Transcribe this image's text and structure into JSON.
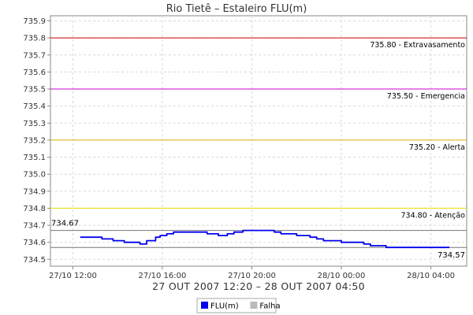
{
  "chart_data": {
    "type": "line",
    "title": "Rio Tietê – Estaleiro FLU(m)",
    "subtitle": "27 OUT 2007 12:20 – 28 OUT 2007 04:50",
    "ylim": [
      734.46,
      735.93
    ],
    "yticks": [
      734.5,
      734.6,
      734.7,
      734.8,
      734.9,
      735.0,
      735.1,
      735.2,
      735.3,
      735.4,
      735.5,
      735.6,
      735.7,
      735.8,
      735.9
    ],
    "ytick_labels": [
      "734.5",
      "734.6",
      "734.7",
      "734.8",
      "734.9",
      "735.0",
      "735.1",
      "735.2",
      "735.3",
      "735.4",
      "735.5",
      "735.6",
      "735.7",
      "735.8",
      "735.9"
    ],
    "xlim_hours": [
      11.0,
      29.6
    ],
    "xticks": [
      {
        "hour": 12,
        "label": "27/10 12:00"
      },
      {
        "hour": 16,
        "label": "27/10 16:00"
      },
      {
        "hour": 20,
        "label": "27/10 20:00"
      },
      {
        "hour": 24,
        "label": "28/10 00:00"
      },
      {
        "hour": 28,
        "label": "28/10 04:00"
      }
    ],
    "grid": true,
    "reference_lines": [
      {
        "value": 735.8,
        "label": "735.80 - Extravasamento",
        "color": "#cc0000"
      },
      {
        "value": 735.5,
        "label": "735.50 - Emergencia",
        "color": "#cc00cc"
      },
      {
        "value": 735.2,
        "label": "735.20 - Alerta",
        "color": "#e0b000"
      },
      {
        "value": 734.8,
        "label": "734.80 - Atenção",
        "color": "#e8e000"
      }
    ],
    "max_line": {
      "value": 734.67,
      "label": "734.67",
      "color": "#777777"
    },
    "min_line": {
      "value": 734.57,
      "label": "734.57",
      "color": "#777777"
    },
    "series": [
      {
        "name": "FLU(m)",
        "color": "#0000ee",
        "x": [
          12.33,
          13.0,
          13.3,
          13.5,
          13.8,
          14.3,
          15.0,
          15.3,
          15.7,
          15.9,
          16.2,
          16.5,
          17.0,
          17.5,
          18.0,
          18.5,
          18.9,
          19.2,
          19.6,
          20.0,
          20.5,
          21.0,
          21.3,
          21.6,
          22.0,
          22.3,
          22.6,
          22.9,
          23.2,
          23.5,
          24.0,
          24.5,
          25.0,
          25.3,
          25.7,
          26.0,
          28.83
        ],
        "y": [
          734.63,
          734.63,
          734.62,
          734.62,
          734.61,
          734.6,
          734.59,
          734.61,
          734.63,
          734.64,
          734.65,
          734.66,
          734.66,
          734.66,
          734.65,
          734.64,
          734.65,
          734.66,
          734.67,
          734.67,
          734.67,
          734.66,
          734.65,
          734.65,
          734.64,
          734.64,
          734.63,
          734.62,
          734.61,
          734.61,
          734.6,
          734.6,
          734.59,
          734.58,
          734.58,
          734.57,
          734.57
        ]
      }
    ]
  },
  "legend": [
    {
      "label": "FLU(m)",
      "color": "#0000ee"
    },
    {
      "label": "Falha",
      "color": "#bbbbbb"
    }
  ]
}
